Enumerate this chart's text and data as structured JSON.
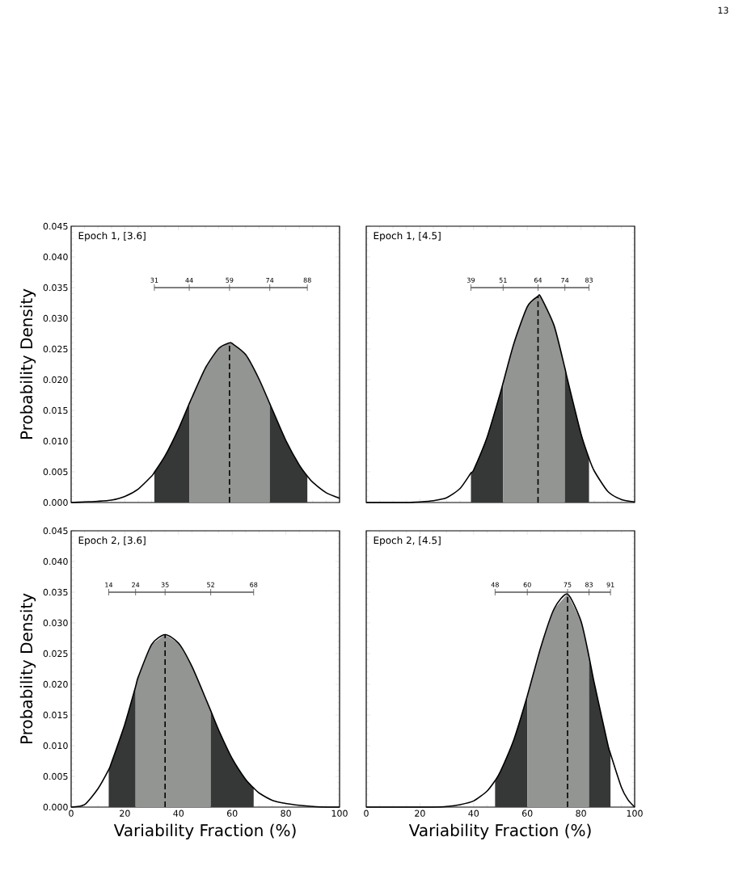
{
  "chart_data": [
    {
      "type": "line",
      "title": "Epoch 1, [3.6]",
      "ylabel": "Probability Density",
      "xlim": [
        0,
        100
      ],
      "ylim": [
        0,
        0.045
      ],
      "xticks": [
        0,
        20,
        40,
        60,
        80,
        100
      ],
      "yticks": [
        {
          "value": 0,
          "label": "0.000"
        },
        {
          "value": 0.005,
          "label": "0.005"
        },
        {
          "value": 0.01,
          "label": "0.010"
        },
        {
          "value": 0.015,
          "label": "0.015"
        },
        {
          "value": 0.02,
          "label": "0.020"
        },
        {
          "value": 0.025,
          "label": "0.025"
        },
        {
          "value": 0.03,
          "label": "0.030"
        },
        {
          "value": 0.035,
          "label": "0.035"
        },
        {
          "value": 0.04,
          "label": "0.040"
        },
        {
          "value": 0.045,
          "label": "0.045"
        }
      ],
      "tick_labels": "y",
      "series": [
        {
          "type": "area",
          "color": "#363837",
          "x": [
            31,
            35,
            40,
            44
          ],
          "values": [
            0.0049,
            0.0076,
            0.012,
            0.0161
          ]
        },
        {
          "type": "area",
          "color": "#939592",
          "x": [
            44,
            45,
            50,
            55,
            59,
            60,
            65,
            70,
            74
          ],
          "values": [
            0.0161,
            0.0171,
            0.0219,
            0.0251,
            0.026,
            0.0259,
            0.0241,
            0.0201,
            0.0161
          ]
        },
        {
          "type": "area",
          "color": "#363837",
          "x": [
            74,
            75,
            80,
            85,
            88
          ],
          "values": [
            0.0161,
            0.0151,
            0.0101,
            0.0061,
            0.0043
          ]
        },
        {
          "color": "#000000",
          "x": [
            0,
            5,
            10,
            15,
            20,
            25,
            30,
            31,
            35,
            40,
            44,
            45,
            50,
            55,
            59,
            60,
            65,
            70,
            74,
            75,
            80,
            85,
            88,
            90,
            95,
            100
          ],
          "values": [
            0.0,
            0.0001,
            0.0002,
            0.0004,
            0.001,
            0.0022,
            0.0043,
            0.0049,
            0.0076,
            0.012,
            0.0161,
            0.0171,
            0.0219,
            0.0251,
            0.026,
            0.0259,
            0.0241,
            0.0201,
            0.0161,
            0.0151,
            0.0101,
            0.0061,
            0.0043,
            0.0033,
            0.0016,
            0.0007
          ]
        },
        {
          "color": "#000000",
          "line_style": "dashed",
          "x": [
            59,
            59
          ],
          "values": [
            0,
            0.026
          ]
        },
        {
          "color": "#555555",
          "x": [
            31,
            88
          ],
          "values": [
            0.035,
            0.035
          ]
        }
      ],
      "annotations": [
        "13",
        {
          "text": "31",
          "x": 31,
          "y": 0.035
        },
        {
          "text": "44",
          "x": 44,
          "y": 0.035
        },
        {
          "text": "59",
          "x": 59,
          "y": 0.035
        },
        {
          "text": "74",
          "x": 74,
          "y": 0.035
        },
        {
          "text": "88",
          "x": 88,
          "y": 0.035
        }
      ]
    },
    {
      "type": "line",
      "title": "Epoch 1, [4.5]",
      "xlim": [
        0,
        100
      ],
      "ylim": [
        0,
        0.045
      ],
      "xticks": [
        0,
        20,
        40,
        60,
        80,
        100
      ],
      "yticks": [
        {
          "value": 0,
          "label": null
        },
        {
          "value": 0.005,
          "label": null
        },
        {
          "value": 0.01,
          "label": null
        },
        {
          "value": 0.015,
          "label": null
        },
        {
          "value": 0.02,
          "label": null
        },
        {
          "value": 0.025,
          "label": null
        },
        {
          "value": 0.03,
          "label": null
        },
        {
          "value": 0.035,
          "label": null
        },
        {
          "value": 0.04,
          "label": null
        },
        {
          "value": 0.045,
          "label": null
        }
      ],
      "tick_labels": false,
      "series": [
        {
          "type": "area",
          "color": "#363837",
          "x": [
            39,
            40,
            45,
            50,
            51
          ],
          "values": [
            0.0048,
            0.0053,
            0.0106,
            0.0179,
            0.0195
          ]
        },
        {
          "type": "area",
          "color": "#939592",
          "x": [
            51,
            55,
            60,
            64,
            65,
            70,
            74
          ],
          "values": [
            0.0195,
            0.0259,
            0.0319,
            0.0336,
            0.0335,
            0.0288,
            0.0219
          ]
        },
        {
          "type": "area",
          "color": "#363837",
          "x": [
            74,
            75,
            80,
            83
          ],
          "values": [
            0.0219,
            0.02,
            0.0112,
            0.0072
          ]
        },
        {
          "color": "#000000",
          "x": [
            0,
            10,
            15,
            20,
            25,
            30,
            35,
            39,
            40,
            45,
            50,
            51,
            55,
            60,
            64,
            65,
            70,
            74,
            75,
            80,
            83,
            85,
            90,
            95,
            100
          ],
          "values": [
            0.0,
            0.0,
            0.0,
            0.0001,
            0.0003,
            0.0008,
            0.0023,
            0.0048,
            0.0053,
            0.0106,
            0.0179,
            0.0195,
            0.0259,
            0.0319,
            0.0336,
            0.0335,
            0.0288,
            0.0219,
            0.02,
            0.0112,
            0.0072,
            0.0051,
            0.0018,
            0.0005,
            0.0001
          ]
        },
        {
          "color": "#000000",
          "line_style": "dashed",
          "x": [
            64,
            64
          ],
          "values": [
            0,
            0.0336
          ]
        },
        {
          "color": "#555555",
          "x": [
            39,
            83
          ],
          "values": [
            0.035,
            0.035
          ]
        }
      ],
      "annotations": [
        {
          "text": "39",
          "x": 39,
          "y": 0.035
        },
        {
          "text": "51",
          "x": 51,
          "y": 0.035
        },
        {
          "text": "64",
          "x": 64,
          "y": 0.035
        },
        {
          "text": "74",
          "x": 74,
          "y": 0.035
        },
        {
          "text": "83",
          "x": 83,
          "y": 0.035
        }
      ]
    },
    {
      "type": "line",
      "title": "Epoch 2, [3.6]",
      "xlabel": "Variability Fraction (%)",
      "ylabel": "Probability Density",
      "xlim": [
        0,
        100
      ],
      "ylim": [
        0,
        0.045
      ],
      "xticks": [
        0,
        20,
        40,
        60,
        80,
        100
      ],
      "yticks": [
        {
          "value": 0,
          "label": "0.000"
        },
        {
          "value": 0.005,
          "label": "0.005"
        },
        {
          "value": 0.01,
          "label": "0.010"
        },
        {
          "value": 0.015,
          "label": "0.015"
        },
        {
          "value": 0.02,
          "label": "0.020"
        },
        {
          "value": 0.025,
          "label": "0.025"
        },
        {
          "value": 0.03,
          "label": "0.030"
        },
        {
          "value": 0.035,
          "label": "0.035"
        },
        {
          "value": 0.04,
          "label": "0.040"
        },
        {
          "value": 0.045,
          "label": "0.045"
        }
      ],
      "series": [
        {
          "type": "area",
          "color": "#363837",
          "x": [
            14,
            15,
            20,
            24
          ],
          "values": [
            0.0061,
            0.0072,
            0.0135,
            0.0196
          ]
        },
        {
          "type": "area",
          "color": "#939592",
          "x": [
            24,
            25,
            30,
            35,
            40,
            45,
            50,
            52
          ],
          "values": [
            0.0196,
            0.0212,
            0.0265,
            0.0281,
            0.0267,
            0.0229,
            0.0178,
            0.0157
          ]
        },
        {
          "type": "area",
          "color": "#363837",
          "x": [
            52,
            55,
            60,
            65,
            68
          ],
          "values": [
            0.0157,
            0.0125,
            0.0079,
            0.0045,
            0.0031
          ]
        },
        {
          "color": "#000000",
          "x": [
            0,
            5,
            10,
            14,
            15,
            20,
            24,
            25,
            30,
            35,
            40,
            45,
            50,
            52,
            55,
            60,
            65,
            68,
            70,
            75,
            80,
            85,
            90,
            95,
            100
          ],
          "values": [
            0.0,
            0.0004,
            0.003,
            0.0061,
            0.0072,
            0.0135,
            0.0196,
            0.0212,
            0.0265,
            0.0281,
            0.0267,
            0.0229,
            0.0178,
            0.0157,
            0.0125,
            0.0079,
            0.0045,
            0.0031,
            0.0023,
            0.0011,
            0.0006,
            0.0003,
            0.0001,
            0.0,
            0.0
          ]
        },
        {
          "color": "#000000",
          "line_style": "dashed",
          "x": [
            35,
            35
          ],
          "values": [
            0,
            0.0281
          ]
        },
        {
          "color": "#555555",
          "x": [
            14,
            68
          ],
          "values": [
            0.035,
            0.035
          ]
        }
      ],
      "annotations": [
        {
          "text": "14",
          "x": 14,
          "y": 0.035
        },
        {
          "text": "24",
          "x": 24,
          "y": 0.035
        },
        {
          "text": "35",
          "x": 35,
          "y": 0.035
        },
        {
          "text": "52",
          "x": 52,
          "y": 0.035
        },
        {
          "text": "68",
          "x": 68,
          "y": 0.035
        }
      ]
    },
    {
      "type": "line",
      "title": "Epoch 2, [4.5]",
      "xlabel": "Variability Fraction (%)",
      "xlim": [
        0,
        100
      ],
      "ylim": [
        0,
        0.045
      ],
      "xticks": [
        0,
        20,
        40,
        60,
        80,
        100
      ],
      "yticks": [
        {
          "value": 0,
          "label": null
        },
        {
          "value": 0.005,
          "label": null
        },
        {
          "value": 0.01,
          "label": null
        },
        {
          "value": 0.015,
          "label": null
        },
        {
          "value": 0.02,
          "label": null
        },
        {
          "value": 0.025,
          "label": null
        },
        {
          "value": 0.03,
          "label": null
        },
        {
          "value": 0.035,
          "label": null
        },
        {
          "value": 0.04,
          "label": null
        },
        {
          "value": 0.045,
          "label": null
        }
      ],
      "tick_labels": "x",
      "series": [
        {
          "type": "area",
          "color": "#363837",
          "x": [
            48,
            50,
            55,
            60
          ],
          "values": [
            0.0043,
            0.0058,
            0.011,
            0.0181
          ]
        },
        {
          "type": "area",
          "color": "#939592",
          "x": [
            60,
            65,
            70,
            75,
            80,
            83
          ],
          "values": [
            0.0181,
            0.026,
            0.0323,
            0.0347,
            0.0303,
            0.0245
          ]
        },
        {
          "type": "area",
          "color": "#363837",
          "x": [
            83,
            85,
            90,
            91
          ],
          "values": [
            0.0245,
            0.0201,
            0.0102,
            0.0087
          ]
        },
        {
          "color": "#000000",
          "x": [
            0,
            10,
            20,
            25,
            30,
            35,
            40,
            45,
            48,
            50,
            55,
            60,
            65,
            70,
            75,
            80,
            83,
            85,
            90,
            91,
            95,
            97.5,
            100
          ],
          "values": [
            0.0,
            0.0,
            0.0,
            0.0,
            0.0001,
            0.0004,
            0.001,
            0.0026,
            0.0043,
            0.0058,
            0.011,
            0.0181,
            0.026,
            0.0323,
            0.0347,
            0.0303,
            0.0245,
            0.0201,
            0.0102,
            0.0087,
            0.0033,
            0.0012,
            0.0
          ]
        },
        {
          "color": "#000000",
          "line_style": "dashed",
          "x": [
            75,
            75
          ],
          "values": [
            0,
            0.0347
          ]
        },
        {
          "color": "#555555",
          "x": [
            48,
            91
          ],
          "values": [
            0.035,
            0.035
          ]
        }
      ],
      "annotations": [
        {
          "text": "48",
          "x": 48,
          "y": 0.035
        },
        {
          "text": "60",
          "x": 60,
          "y": 0.035
        },
        {
          "text": "75",
          "x": 75,
          "y": 0.035
        },
        {
          "text": "83",
          "x": 83,
          "y": 0.035
        },
        {
          "text": "91",
          "x": 91,
          "y": 0.035
        }
      ]
    }
  ]
}
